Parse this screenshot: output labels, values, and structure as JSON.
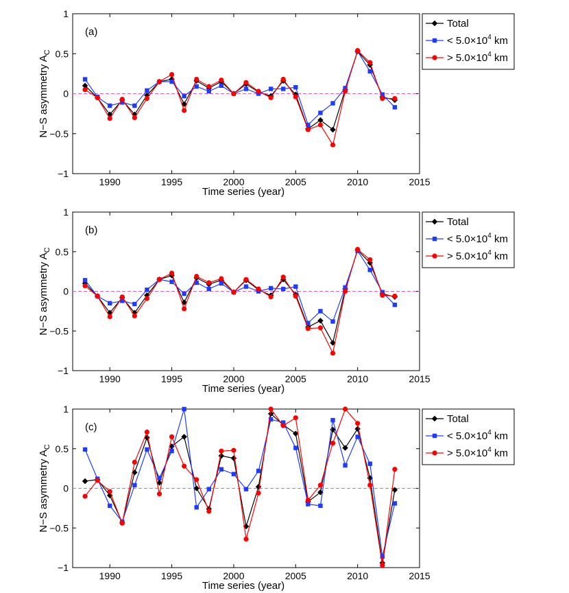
{
  "chart_data": [
    {
      "type": "line",
      "panel_label": "(a)",
      "xlabel": "Time series (year)",
      "ylabel_main": "N−S asymmetry A",
      "ylabel_sub": "C",
      "xlim": [
        1987,
        2015
      ],
      "ylim": [
        -1,
        1
      ],
      "xticks": [
        1990,
        1995,
        2000,
        2005,
        2010,
        2015
      ],
      "xtick_labels": [
        "1990",
        "1995",
        "2000",
        "2005",
        "2010",
        "2015"
      ],
      "yticks": [
        -1,
        -0.5,
        0,
        0.5,
        1
      ],
      "ytick_labels": [
        "−1",
        "−0.5",
        "0",
        "0.5",
        "1"
      ],
      "reference_line": 0,
      "x": [
        1988,
        1989,
        1990,
        1991,
        1992,
        1993,
        1994,
        1995,
        1996,
        1997,
        1998,
        1999,
        2000,
        2001,
        2002,
        2003,
        2004,
        2005,
        2006,
        2007,
        2008,
        2009,
        2010,
        2011,
        2012,
        2013
      ],
      "series": [
        {
          "name": "Total",
          "color": "#000000",
          "marker": "diamond",
          "values": [
            0.1,
            -0.05,
            -0.26,
            -0.08,
            -0.26,
            -0.02,
            0.15,
            0.18,
            -0.13,
            0.16,
            0.07,
            0.15,
            0.0,
            0.12,
            0.02,
            -0.03,
            0.16,
            -0.01,
            -0.44,
            -0.33,
            -0.45,
            0.05,
            0.53,
            0.36,
            -0.04,
            -0.08
          ]
        },
        {
          "name": "< 5.0×10",
          "color": "#1f3bff",
          "marker": "square",
          "values": [
            0.18,
            -0.04,
            -0.15,
            -0.11,
            -0.15,
            0.04,
            0.15,
            0.15,
            -0.03,
            0.09,
            0.03,
            0.1,
            0.0,
            0.06,
            0.0,
            0.06,
            0.06,
            0.08,
            -0.39,
            -0.24,
            -0.12,
            0.07,
            0.53,
            0.28,
            -0.01,
            -0.17
          ]
        },
        {
          "name": "> 5.0×10",
          "color": "#ff0000",
          "marker": "circle",
          "values": [
            0.05,
            -0.05,
            -0.31,
            -0.07,
            -0.3,
            -0.06,
            0.15,
            0.24,
            -0.21,
            0.18,
            0.09,
            0.17,
            0.0,
            0.14,
            0.03,
            -0.05,
            0.18,
            -0.04,
            -0.45,
            -0.39,
            -0.64,
            0.03,
            0.54,
            0.39,
            -0.06,
            -0.06
          ]
        }
      ],
      "legend": {
        "position": "outside-right",
        "sup": "4",
        "unit": "km"
      }
    },
    {
      "type": "line",
      "panel_label": "(b)",
      "xlabel": "Time series (year)",
      "ylabel_main": "N−S asymmetry A",
      "ylabel_sub": "C",
      "xlim": [
        1987,
        2015
      ],
      "ylim": [
        -1,
        1
      ],
      "xticks": [
        1990,
        1995,
        2000,
        2005,
        2010,
        2015
      ],
      "xtick_labels": [
        "1990",
        "1995",
        "2000",
        "2005",
        "2010",
        "2015"
      ],
      "yticks": [
        -1,
        -0.5,
        0,
        0.5,
        1
      ],
      "ytick_labels": [
        "−1",
        "−0.5",
        "0",
        "0.5",
        "1"
      ],
      "reference_line": 0,
      "x": [
        1988,
        1989,
        1990,
        1991,
        1992,
        1993,
        1994,
        1995,
        1996,
        1997,
        1998,
        1999,
        2000,
        2001,
        2002,
        2003,
        2004,
        2005,
        2006,
        2007,
        2008,
        2009,
        2010,
        2011,
        2012,
        2013
      ],
      "series": [
        {
          "name": "Total",
          "color": "#000000",
          "marker": "diamond",
          "values": [
            0.1,
            -0.06,
            -0.27,
            -0.08,
            -0.27,
            -0.05,
            0.15,
            0.2,
            -0.14,
            0.17,
            0.09,
            0.14,
            -0.01,
            0.14,
            0.02,
            -0.05,
            0.15,
            -0.04,
            -0.45,
            -0.37,
            -0.65,
            0.03,
            0.52,
            0.36,
            -0.03,
            -0.07
          ]
        },
        {
          "name": "< 5.0×10",
          "color": "#1f3bff",
          "marker": "square",
          "values": [
            0.14,
            -0.06,
            -0.15,
            -0.12,
            -0.16,
            0.02,
            0.15,
            0.12,
            -0.03,
            0.11,
            0.03,
            0.1,
            -0.01,
            0.06,
            0.0,
            0.04,
            0.03,
            0.06,
            -0.4,
            -0.25,
            -0.38,
            0.05,
            0.51,
            0.27,
            -0.01,
            -0.17
          ]
        },
        {
          "name": "> 5.0×10",
          "color": "#ff0000",
          "marker": "circle",
          "values": [
            0.07,
            -0.06,
            -0.32,
            -0.07,
            -0.31,
            -0.09,
            0.15,
            0.23,
            -0.22,
            0.19,
            0.11,
            0.16,
            -0.01,
            0.15,
            0.03,
            -0.07,
            0.18,
            -0.06,
            -0.47,
            -0.46,
            -0.78,
            0.0,
            0.53,
            0.4,
            -0.05,
            -0.06
          ]
        }
      ],
      "legend": {
        "position": "outside-right",
        "sup": "4",
        "unit": "km"
      }
    },
    {
      "type": "line",
      "panel_label": "(c)",
      "xlabel": "Time series (year)",
      "ylabel_main": "N−S asymmetry A",
      "ylabel_sub": "C",
      "xlim": [
        1987,
        2015
      ],
      "ylim": [
        -1,
        1
      ],
      "xticks": [
        1990,
        1995,
        2000,
        2005,
        2010,
        2015
      ],
      "xtick_labels": [
        "1990",
        "1995",
        "2000",
        "2005",
        "2010",
        "2015"
      ],
      "yticks": [
        -1,
        -0.5,
        0,
        0.5,
        1
      ],
      "ytick_labels": [
        "−1",
        "−0.5",
        "0",
        "0.5",
        "1"
      ],
      "reference_line": 0,
      "x": [
        1988,
        1989,
        1990,
        1991,
        1992,
        1993,
        1994,
        1995,
        1996,
        1997,
        1998,
        1999,
        2000,
        2001,
        2002,
        2003,
        2004,
        2005,
        2006,
        2007,
        2008,
        2009,
        2010,
        2011,
        2012,
        2013
      ],
      "series": [
        {
          "name": "Total",
          "color": "#000000",
          "marker": "diamond",
          "values": [
            0.09,
            0.11,
            -0.09,
            -0.43,
            0.2,
            0.64,
            0.07,
            0.53,
            0.65,
            0.0,
            -0.26,
            0.41,
            0.38,
            -0.48,
            0.02,
            0.94,
            0.8,
            0.69,
            -0.17,
            -0.05,
            0.74,
            0.51,
            0.75,
            0.13,
            -0.94,
            -0.02
          ]
        },
        {
          "name": "< 5.0×10",
          "color": "#1f3bff",
          "marker": "square",
          "values": [
            0.49,
            0.12,
            -0.22,
            -0.42,
            0.04,
            0.49,
            0.13,
            0.47,
            1.0,
            -0.24,
            -0.01,
            0.24,
            0.18,
            -0.01,
            0.22,
            0.87,
            0.83,
            0.51,
            -0.2,
            -0.22,
            0.86,
            0.29,
            0.65,
            0.31,
            -0.86,
            -0.19
          ]
        },
        {
          "name": "> 5.0×10",
          "color": "#ff0000",
          "marker": "circle",
          "values": [
            -0.1,
            0.1,
            -0.04,
            -0.44,
            0.33,
            0.71,
            -0.07,
            0.65,
            0.28,
            0.11,
            -0.29,
            0.47,
            0.48,
            -0.64,
            -0.06,
            1.0,
            0.79,
            0.89,
            -0.15,
            0.04,
            0.57,
            1.0,
            0.82,
            0.04,
            -0.97,
            0.24
          ]
        }
      ],
      "legend": {
        "position": "outside-right",
        "sup": "4",
        "unit": "km"
      }
    }
  ]
}
